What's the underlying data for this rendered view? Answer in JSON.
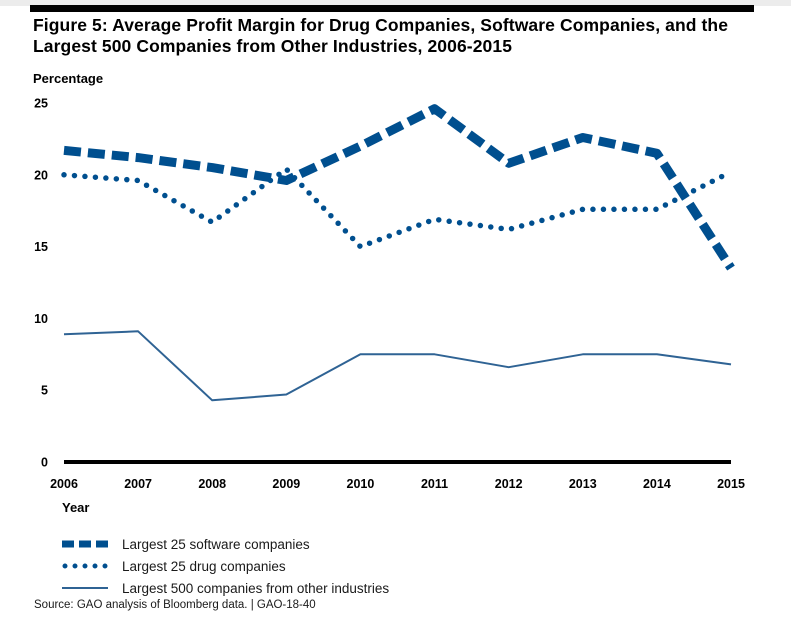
{
  "chart_data": {
    "type": "line",
    "title": "Figure 5: Average Profit Margin for Drug Companies, Software Companies, and the Largest 500 Companies from Other Industries, 2006-2015",
    "xlabel": "Year",
    "ylabel": "Percentage",
    "x": [
      "2006",
      "2007",
      "2008",
      "2009",
      "2010",
      "2011",
      "2012",
      "2013",
      "2014",
      "2015"
    ],
    "yticks": [
      "0",
      "5",
      "10",
      "15",
      "20",
      "25"
    ],
    "ylim": [
      0,
      25
    ],
    "grid": false,
    "legend_position": "bottom-left",
    "series": [
      {
        "name": "Largest 25 software companies",
        "style": "dashed-thick",
        "color": "#004f8f",
        "values": [
          21.7,
          21.2,
          20.5,
          19.6,
          22.0,
          24.6,
          20.8,
          22.6,
          21.5,
          13.5
        ]
      },
      {
        "name": "Largest 25 drug companies",
        "style": "dotted",
        "color": "#004f8f",
        "values": [
          20.0,
          19.6,
          16.7,
          20.4,
          15.0,
          16.9,
          16.2,
          17.6,
          17.6,
          20.2
        ]
      },
      {
        "name": "Largest 500 companies from other industries",
        "style": "solid-thin",
        "color": "#2f6394",
        "values": [
          8.9,
          9.1,
          4.3,
          4.7,
          7.5,
          7.5,
          6.6,
          7.5,
          7.5,
          6.8
        ]
      }
    ],
    "source": "Source: GAO analysis of Bloomberg data.  |  GAO-18-40"
  }
}
